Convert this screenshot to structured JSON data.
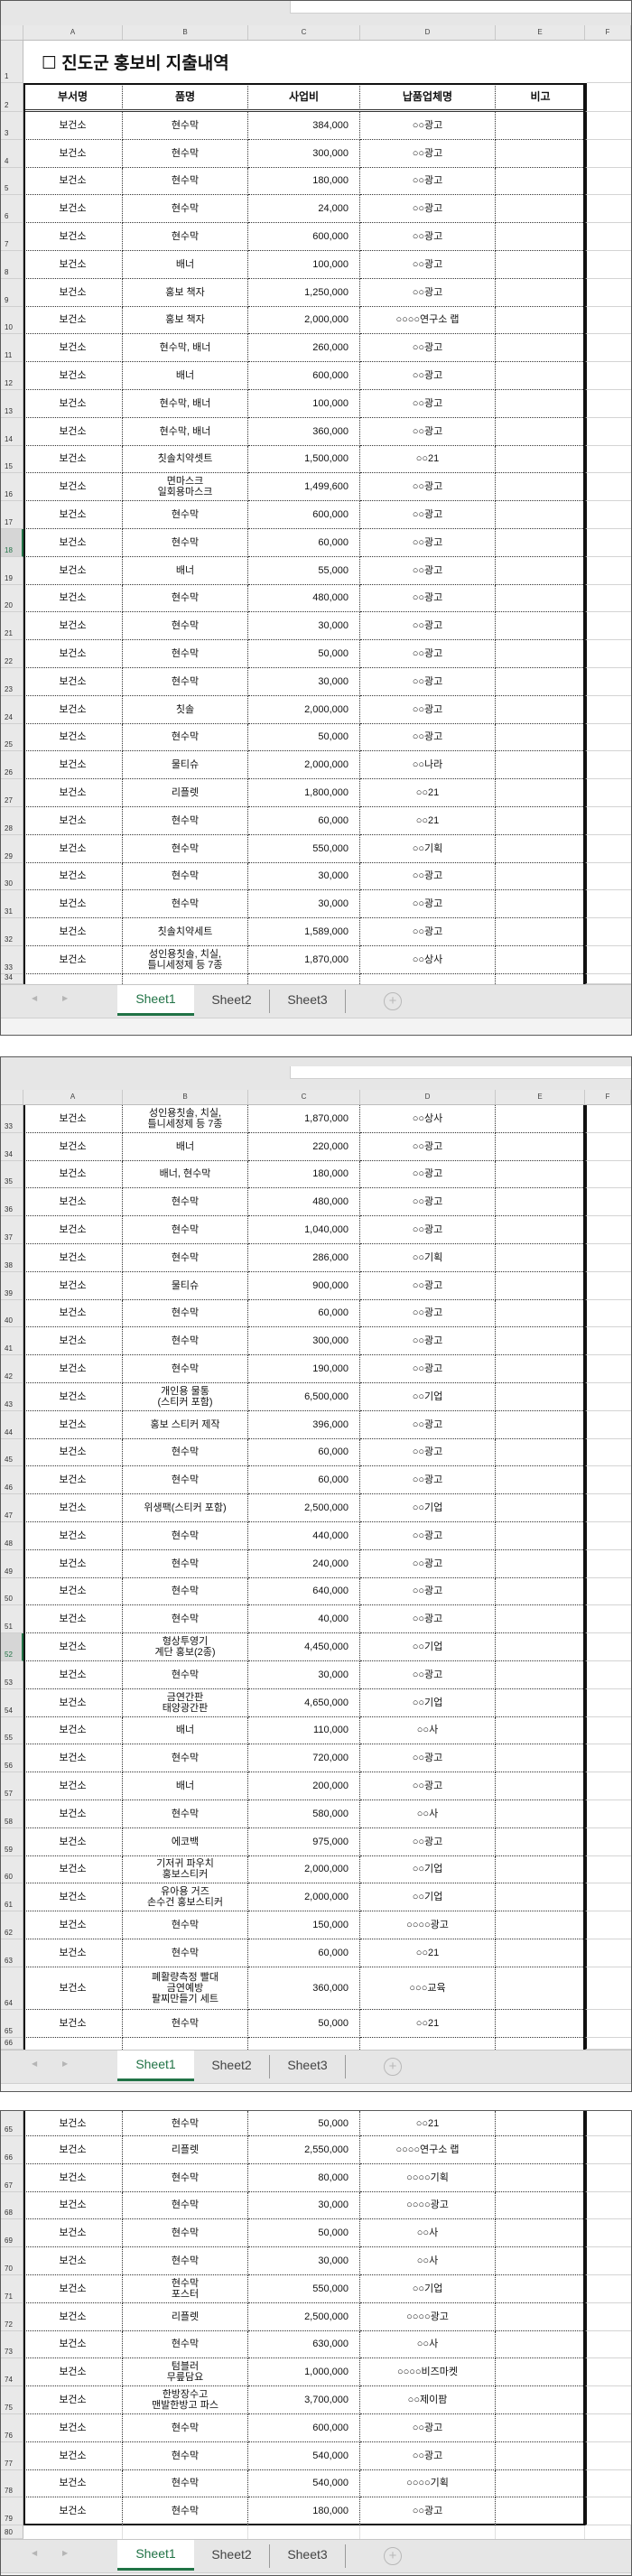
{
  "columns": [
    "A",
    "B",
    "C",
    "D",
    "E",
    "F"
  ],
  "title": "☐ 진도군 홍보비 지출내역",
  "headers": [
    "부서명",
    "품명",
    "사업비",
    "납품업체명",
    "비고"
  ],
  "rows": {
    "3": [
      "보건소",
      "현수막",
      "384,000",
      "○○광고",
      ""
    ],
    "4": [
      "보건소",
      "현수막",
      "300,000",
      "○○광고",
      ""
    ],
    "5": [
      "보건소",
      "현수막",
      "180,000",
      "○○광고",
      ""
    ],
    "6": [
      "보건소",
      "현수막",
      "24,000",
      "○○광고",
      ""
    ],
    "7": [
      "보건소",
      "현수막",
      "600,000",
      "○○광고",
      ""
    ],
    "8": [
      "보건소",
      "배너",
      "100,000",
      "○○광고",
      ""
    ],
    "9": [
      "보건소",
      "홍보 책자",
      "1,250,000",
      "○○광고",
      ""
    ],
    "10": [
      "보건소",
      "홍보 책자",
      "2,000,000",
      "○○○○연구소 랩",
      ""
    ],
    "11": [
      "보건소",
      "현수막, 배너",
      "260,000",
      "○○광고",
      ""
    ],
    "12": [
      "보건소",
      "배너",
      "600,000",
      "○○광고",
      ""
    ],
    "13": [
      "보건소",
      "현수막, 배너",
      "100,000",
      "○○광고",
      ""
    ],
    "14": [
      "보건소",
      "현수막, 배너",
      "360,000",
      "○○광고",
      ""
    ],
    "15": [
      "보건소",
      "칫솔치약셋트",
      "1,500,000",
      "○○21",
      ""
    ],
    "16": [
      "보건소",
      "면마스크\n일회용마스크",
      "1,499,600",
      "○○광고",
      ""
    ],
    "17": [
      "보건소",
      "현수막",
      "600,000",
      "○○광고",
      ""
    ],
    "18": [
      "보건소",
      "현수막",
      "60,000",
      "○○광고",
      ""
    ],
    "19": [
      "보건소",
      "배너",
      "55,000",
      "○○광고",
      ""
    ],
    "20": [
      "보건소",
      "현수막",
      "480,000",
      "○○광고",
      ""
    ],
    "21": [
      "보건소",
      "현수막",
      "30,000",
      "○○광고",
      ""
    ],
    "22": [
      "보건소",
      "현수막",
      "50,000",
      "○○광고",
      ""
    ],
    "23": [
      "보건소",
      "현수막",
      "30,000",
      "○○광고",
      ""
    ],
    "24": [
      "보건소",
      "칫솔",
      "2,000,000",
      "○○광고",
      ""
    ],
    "25": [
      "보건소",
      "현수막",
      "50,000",
      "○○광고",
      ""
    ],
    "26": [
      "보건소",
      "물티슈",
      "2,000,000",
      "○○나라",
      ""
    ],
    "27": [
      "보건소",
      "리플렛",
      "1,800,000",
      "○○21",
      ""
    ],
    "28": [
      "보건소",
      "현수막",
      "60,000",
      "○○21",
      ""
    ],
    "29": [
      "보건소",
      "현수막",
      "550,000",
      "○○기획",
      ""
    ],
    "30": [
      "보건소",
      "현수막",
      "30,000",
      "○○광고",
      ""
    ],
    "31": [
      "보건소",
      "현수막",
      "30,000",
      "○○광고",
      ""
    ],
    "32": [
      "보건소",
      "칫솔치약세트",
      "1,589,000",
      "○○광고",
      ""
    ],
    "33": [
      "보건소",
      "성인용칫솔, 치실,\n틀니세정제 등 7종",
      "1,870,000",
      "○○상사",
      ""
    ],
    "34": [
      "보건소",
      "배너",
      "220,000",
      "○○광고",
      ""
    ],
    "35": [
      "보건소",
      "배너, 현수막",
      "180,000",
      "○○광고",
      ""
    ],
    "36": [
      "보건소",
      "현수막",
      "480,000",
      "○○광고",
      ""
    ],
    "37": [
      "보건소",
      "현수막",
      "1,040,000",
      "○○광고",
      ""
    ],
    "38": [
      "보건소",
      "현수막",
      "286,000",
      "○○기획",
      ""
    ],
    "39": [
      "보건소",
      "물티슈",
      "900,000",
      "○○광고",
      ""
    ],
    "40": [
      "보건소",
      "현수막",
      "60,000",
      "○○광고",
      ""
    ],
    "41": [
      "보건소",
      "현수막",
      "300,000",
      "○○광고",
      ""
    ],
    "42": [
      "보건소",
      "현수막",
      "190,000",
      "○○광고",
      ""
    ],
    "43": [
      "보건소",
      "개인용 물통\n(스티커 포함)",
      "6,500,000",
      "○○기업",
      ""
    ],
    "44": [
      "보건소",
      "홍보 스티커 제작",
      "396,000",
      "○○광고",
      ""
    ],
    "45": [
      "보건소",
      "현수막",
      "60,000",
      "○○광고",
      ""
    ],
    "46": [
      "보건소",
      "현수막",
      "60,000",
      "○○광고",
      ""
    ],
    "47": [
      "보건소",
      "위생팩(스티커 포함)",
      "2,500,000",
      "○○기업",
      ""
    ],
    "48": [
      "보건소",
      "현수막",
      "440,000",
      "○○광고",
      ""
    ],
    "49": [
      "보건소",
      "현수막",
      "240,000",
      "○○광고",
      ""
    ],
    "50": [
      "보건소",
      "현수막",
      "640,000",
      "○○광고",
      ""
    ],
    "51": [
      "보건소",
      "현수막",
      "40,000",
      "○○광고",
      ""
    ],
    "52": [
      "보건소",
      "형상투영기\n계단 홍보(2종)",
      "4,450,000",
      "○○기업",
      ""
    ],
    "53": [
      "보건소",
      "현수막",
      "30,000",
      "○○광고",
      ""
    ],
    "54": [
      "보건소",
      "금연간판\n태양광간판",
      "4,650,000",
      "○○기업",
      ""
    ],
    "55": [
      "보건소",
      "배너",
      "110,000",
      "○○사",
      ""
    ],
    "56": [
      "보건소",
      "현수막",
      "720,000",
      "○○광고",
      ""
    ],
    "57": [
      "보건소",
      "배너",
      "200,000",
      "○○광고",
      ""
    ],
    "58": [
      "보건소",
      "현수막",
      "580,000",
      "○○사",
      ""
    ],
    "59": [
      "보건소",
      "에코백",
      "975,000",
      "○○광고",
      ""
    ],
    "60": [
      "보건소",
      "기저귀 파우치\n홍보스티커",
      "2,000,000",
      "○○기업",
      ""
    ],
    "61": [
      "보건소",
      "유아용 거즈\n손수건 홍보스티커",
      "2,000,000",
      "○○기업",
      ""
    ],
    "62": [
      "보건소",
      "현수막",
      "150,000",
      "○○○○광고",
      ""
    ],
    "63": [
      "보건소",
      "현수막",
      "60,000",
      "○○21",
      ""
    ],
    "64": [
      "보건소",
      "폐활량측정 빨대\n금연예방\n팔찌만들기 세트",
      "360,000",
      "○○○교육",
      ""
    ],
    "65": [
      "보건소",
      "현수막",
      "50,000",
      "○○21",
      ""
    ],
    "66": [
      "보건소",
      "리플렛",
      "2,550,000",
      "○○○○연구소 랩",
      ""
    ],
    "67": [
      "보건소",
      "현수막",
      "80,000",
      "○○○○기획",
      ""
    ],
    "68": [
      "보건소",
      "현수막",
      "30,000",
      "○○○○광고",
      ""
    ],
    "69": [
      "보건소",
      "현수막",
      "50,000",
      "○○사",
      ""
    ],
    "70": [
      "보건소",
      "현수막",
      "30,000",
      "○○사",
      ""
    ],
    "71": [
      "보건소",
      "현수막\n포스터",
      "550,000",
      "○○기업",
      ""
    ],
    "72": [
      "보건소",
      "리플렛",
      "2,500,000",
      "○○○○광고",
      ""
    ],
    "73": [
      "보건소",
      "현수막",
      "630,000",
      "○○사",
      ""
    ],
    "74": [
      "보건소",
      "텀블러\n무릎담요",
      "1,000,000",
      "○○○○비즈마켓",
      ""
    ],
    "75": [
      "보건소",
      "한방장수고\n맨발한방고 파스",
      "3,700,000",
      "○○제이팜",
      ""
    ],
    "76": [
      "보건소",
      "현수막",
      "600,000",
      "○○광고",
      ""
    ],
    "77": [
      "보건소",
      "현수막",
      "540,000",
      "○○광고",
      ""
    ],
    "78": [
      "보건소",
      "현수막",
      "540,000",
      "○○○○기획",
      ""
    ],
    "79": [
      "보건소",
      "현수막",
      "180,000",
      "○○광고",
      ""
    ]
  },
  "sheet_tabs": [
    "Sheet1",
    "Sheet2",
    "Sheet3"
  ],
  "active_tab": "Sheet1",
  "icons": {
    "prev": "chevron-left-icon",
    "next": "chevron-right-icon",
    "add": "plus-circle-icon"
  },
  "colors": {
    "accent": "#217346",
    "header_bg": "#e9e9e9"
  }
}
